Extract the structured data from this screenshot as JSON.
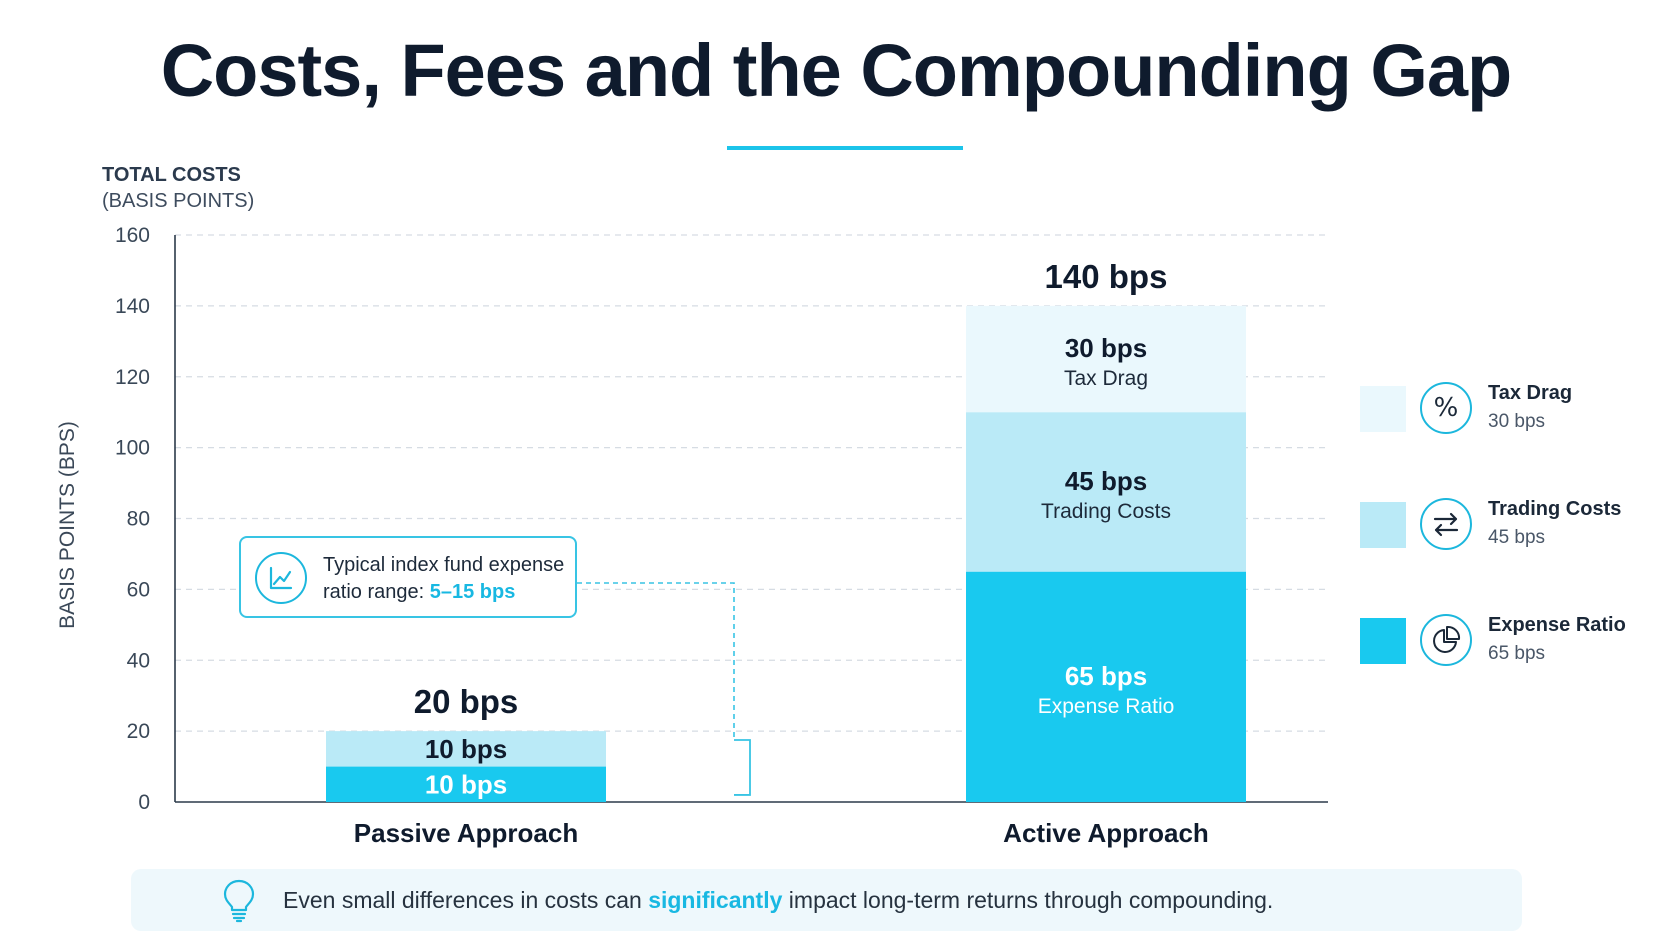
{
  "title": "Costs, Fees and the Compounding Gap",
  "axis_title": {
    "line1": "TOTAL COSTS",
    "line2": "(BASIS POINTS)"
  },
  "colors": {
    "expense": "#19c9ef",
    "trading": "#baeaf7",
    "tax": "#eaf8fd",
    "accent": "#1cc4ea"
  },
  "chart_data": {
    "type": "bar",
    "stacked": true,
    "categories": [
      "Passive Approach",
      "Active Approach"
    ],
    "ylabel": "BASIS POINTS (BPS)",
    "ylim": [
      0,
      160
    ],
    "yticks": [
      0,
      20,
      40,
      60,
      80,
      100,
      120,
      140,
      160
    ],
    "grid": true,
    "series": [
      {
        "key": "expense",
        "values": [
          10,
          65
        ],
        "labels": [
          "10 bps",
          "65 bps"
        ],
        "sublabels": [
          "",
          "Expense Ratio"
        ]
      },
      {
        "key": "trading",
        "values": [
          10,
          45
        ],
        "labels": [
          "10 bps",
          "45 bps"
        ],
        "sublabels": [
          "",
          "Trading Costs"
        ]
      },
      {
        "key": "tax",
        "values": [
          0,
          30
        ],
        "labels": [
          "",
          "30 bps"
        ],
        "sublabels": [
          "",
          "Tax Drag"
        ]
      }
    ],
    "totals": [
      20,
      140
    ],
    "total_labels": [
      "20 bps",
      "140 bps"
    ]
  },
  "callout": {
    "text": "Typical index fund expense ratio range: ",
    "highlight": "5–15 bps",
    "icon": "line-chart-icon"
  },
  "legend": [
    {
      "name": "Tax Drag",
      "value": "30 bps",
      "icon": "percent-icon",
      "color": "#eaf8fd"
    },
    {
      "name": "Trading Costs",
      "value": "45 bps",
      "icon": "arrows-swap-icon",
      "color": "#baeaf7"
    },
    {
      "name": "Expense Ratio",
      "value": "65 bps",
      "icon": "pie-chart-icon",
      "color": "#19c9ef"
    }
  ],
  "footer": {
    "before": "Even small differences in costs can ",
    "highlight": "significantly",
    "after": " impact long-term returns through compounding.",
    "icon": "lightbulb-icon"
  }
}
